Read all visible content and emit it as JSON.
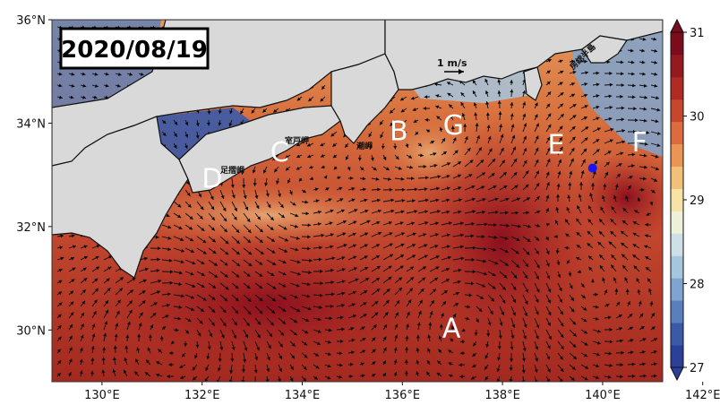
{
  "map": {
    "date_label": "2020/08/19",
    "lon_ticks": [
      "130°E",
      "132°E",
      "134°E",
      "136°E",
      "138°E",
      "140°E",
      "142°E"
    ],
    "lat_ticks": [
      "30°N",
      "32°N",
      "34°N",
      "36°N"
    ],
    "lon_range": [
      129,
      141.2
    ],
    "lat_range": [
      29,
      36
    ],
    "scale_arrow_label": "1 m/s",
    "land_color": "#d9d9d9",
    "markers": [
      {
        "label": "A",
        "lon": 136.98,
        "lat": 30.05
      },
      {
        "label": "B",
        "lon": 135.93,
        "lat": 33.86
      },
      {
        "label": "C",
        "lon": 133.55,
        "lat": 33.45
      },
      {
        "label": "D",
        "lon": 132.2,
        "lat": 32.94
      },
      {
        "label": "E",
        "lon": 139.07,
        "lat": 33.6
      },
      {
        "label": "F",
        "lon": 140.74,
        "lat": 33.64
      },
      {
        "label": "G",
        "lon": 137.02,
        "lat": 33.97
      }
    ],
    "place_labels": [
      {
        "id": "muroto",
        "text": "室戸岬",
        "lon": 133.75,
        "lat": 33.55
      },
      {
        "id": "shiono",
        "text": "潮岬",
        "lon": 135.85,
        "lat": 33.55
      },
      {
        "id": "ashizuri",
        "text": "足摺岬",
        "lon": 132.5,
        "lat": 33.0
      },
      {
        "id": "boso",
        "text": "房総半島",
        "lon": 140.0,
        "lat": 35.25
      }
    ],
    "station": {
      "lon": 139.8,
      "lat": 33.13,
      "color": "#1414ff"
    }
  },
  "colorbar": {
    "ticks": [
      "27",
      "28",
      "29",
      "30",
      "31"
    ],
    "min": 27,
    "max": 31,
    "colors": [
      "#2c3f99",
      "#3a5aa8",
      "#5a7fbd",
      "#7fa4cf",
      "#a6c6de",
      "#cde0e8",
      "#eef0d8",
      "#f7e3a6",
      "#f3c07a",
      "#ea9556",
      "#dc6c3e",
      "#c7472d",
      "#b02b24",
      "#951a1f",
      "#7a0c1b"
    ]
  }
}
